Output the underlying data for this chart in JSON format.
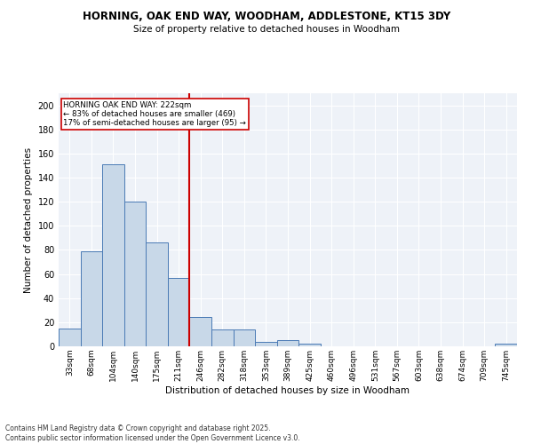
{
  "title1": "HORNING, OAK END WAY, WOODHAM, ADDLESTONE, KT15 3DY",
  "title2": "Size of property relative to detached houses in Woodham",
  "xlabel": "Distribution of detached houses by size in Woodham",
  "ylabel": "Number of detached properties",
  "bins": [
    "33sqm",
    "68sqm",
    "104sqm",
    "140sqm",
    "175sqm",
    "211sqm",
    "246sqm",
    "282sqm",
    "318sqm",
    "353sqm",
    "389sqm",
    "425sqm",
    "460sqm",
    "496sqm",
    "531sqm",
    "567sqm",
    "603sqm",
    "638sqm",
    "674sqm",
    "709sqm",
    "745sqm"
  ],
  "values": [
    15,
    79,
    151,
    120,
    86,
    57,
    24,
    14,
    14,
    4,
    5,
    2,
    0,
    0,
    0,
    0,
    0,
    0,
    0,
    0,
    2
  ],
  "bar_color": "#c8d8e8",
  "bar_edge_color": "#4a7ab5",
  "vline_x": 5.5,
  "vline_color": "#cc0000",
  "annotation_title": "HORNING OAK END WAY: 222sqm",
  "annotation_line1": "← 83% of detached houses are smaller (469)",
  "annotation_line2": "17% of semi-detached houses are larger (95) →",
  "annotation_box_color": "#cc0000",
  "footer1": "Contains HM Land Registry data © Crown copyright and database right 2025.",
  "footer2": "Contains public sector information licensed under the Open Government Licence v3.0.",
  "ylim": [
    0,
    210
  ],
  "yticks": [
    0,
    20,
    40,
    60,
    80,
    100,
    120,
    140,
    160,
    180,
    200
  ],
  "bg_color": "#eef2f8"
}
